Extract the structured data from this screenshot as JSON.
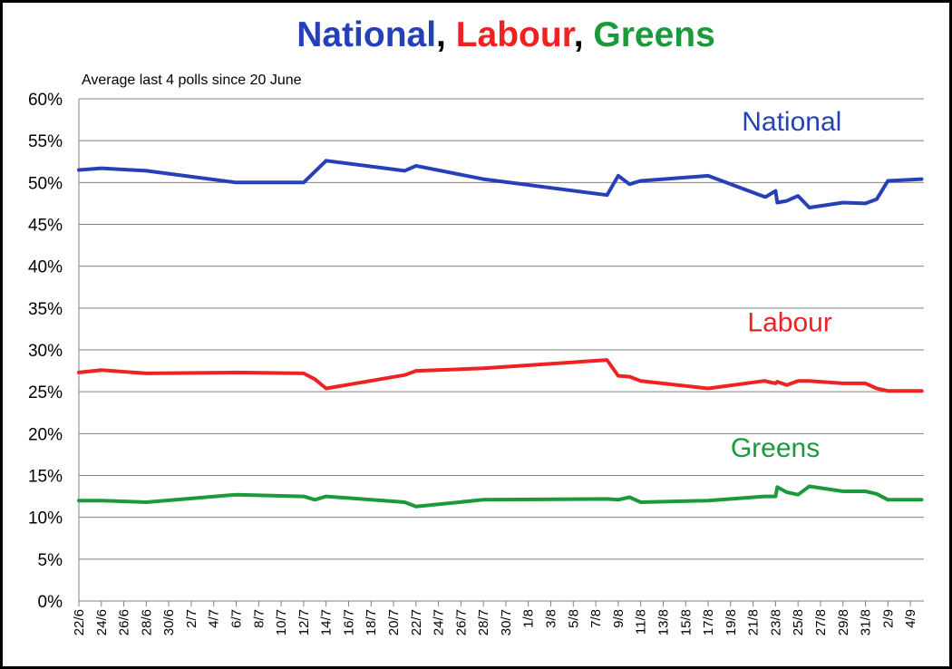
{
  "title": {
    "parts": [
      {
        "text": "National",
        "color": "#2640b8"
      },
      {
        "text": ",  ",
        "color": "#000000"
      },
      {
        "text": "Labour",
        "color": "#ee2222"
      },
      {
        "text": ", ",
        "color": "#000000"
      },
      {
        "text": "Greens",
        "color": "#1a9a3a"
      }
    ]
  },
  "subtitle": "Average last 4 polls since 20 June",
  "chart_data": {
    "type": "line",
    "ylim": [
      0,
      60
    ],
    "yticks": [
      "0%",
      "5%",
      "10%",
      "15%",
      "20%",
      "25%",
      "30%",
      "35%",
      "40%",
      "45%",
      "50%",
      "55%",
      "60%"
    ],
    "x_tick_labels": [
      "22/6",
      "24/6",
      "26/6",
      "28/6",
      "30/6",
      "2/7",
      "4/7",
      "6/7",
      "8/7",
      "10/7",
      "12/7",
      "14/7",
      "16/7",
      "18/7",
      "20/7",
      "22/7",
      "24/7",
      "26/7",
      "28/7",
      "30/7",
      "1/8",
      "3/8",
      "5/8",
      "7/8",
      "9/8",
      "11/8",
      "13/8",
      "15/8",
      "17/8",
      "19/8",
      "21/8",
      "23/8",
      "25/8",
      "27/8",
      "29/8",
      "31/8",
      "2/9",
      "4/9"
    ],
    "x_start_date": "22/6",
    "grid": true,
    "series": [
      {
        "name": "National",
        "color": "#2640b8",
        "points": [
          [
            "22/6",
            51.5
          ],
          [
            "24/6",
            51.7
          ],
          [
            "28/6",
            51.4
          ],
          [
            "6/7",
            50.0
          ],
          [
            "12/7",
            50.0
          ],
          [
            "13/7",
            51.3
          ],
          [
            "14/7",
            52.6
          ],
          [
            "21/7",
            51.4
          ],
          [
            "22/7",
            52.0
          ],
          [
            "28/7",
            50.4
          ],
          [
            "8/8",
            48.5
          ],
          [
            "9/8",
            50.8
          ],
          [
            "10/8",
            49.8
          ],
          [
            "11/8",
            50.2
          ],
          [
            "17/8",
            50.8
          ],
          [
            "22/8",
            48.3
          ],
          [
            "22/8 ",
            48.3
          ],
          [
            "23/8",
            49.0
          ],
          [
            "23/8 ",
            47.6
          ],
          [
            "24/8",
            47.8
          ],
          [
            "25/8",
            48.4
          ],
          [
            "26/8",
            47.0
          ],
          [
            "29/8",
            47.6
          ],
          [
            "31/8",
            47.5
          ],
          [
            "1/9",
            48.0
          ],
          [
            "2/9",
            50.2
          ],
          [
            "5/9",
            50.4
          ]
        ]
      },
      {
        "name": "Labour",
        "color": "#ee2222",
        "points": [
          [
            "22/6",
            27.3
          ],
          [
            "24/6",
            27.6
          ],
          [
            "28/6",
            27.2
          ],
          [
            "6/7",
            27.3
          ],
          [
            "12/7",
            27.2
          ],
          [
            "13/7",
            26.5
          ],
          [
            "14/7",
            25.4
          ],
          [
            "21/7",
            27.0
          ],
          [
            "22/7",
            27.5
          ],
          [
            "28/7",
            27.8
          ],
          [
            "8/8",
            28.8
          ],
          [
            "9/8",
            26.9
          ],
          [
            "10/8",
            26.8
          ],
          [
            "11/8",
            26.3
          ],
          [
            "17/8",
            25.4
          ],
          [
            "22/8",
            26.3
          ],
          [
            "23/8",
            26.0
          ],
          [
            "23/8 ",
            26.2
          ],
          [
            "24/8",
            25.8
          ],
          [
            "25/8",
            26.3
          ],
          [
            "26/8",
            26.3
          ],
          [
            "29/8",
            26.0
          ],
          [
            "31/8",
            26.0
          ],
          [
            "1/9",
            25.4
          ],
          [
            "2/9",
            25.1
          ],
          [
            "5/9",
            25.1
          ]
        ]
      },
      {
        "name": "Greens",
        "color": "#1a9a3a",
        "points": [
          [
            "22/6",
            12.0
          ],
          [
            "24/6",
            12.0
          ],
          [
            "28/6",
            11.8
          ],
          [
            "6/7",
            12.7
          ],
          [
            "12/7",
            12.5
          ],
          [
            "13/7",
            12.1
          ],
          [
            "14/7",
            12.5
          ],
          [
            "21/7",
            11.8
          ],
          [
            "22/7",
            11.3
          ],
          [
            "28/7",
            12.1
          ],
          [
            "8/8",
            12.2
          ],
          [
            "9/8",
            12.1
          ],
          [
            "10/8",
            12.4
          ],
          [
            "11/8",
            11.8
          ],
          [
            "17/8",
            12.0
          ],
          [
            "22/8",
            12.5
          ],
          [
            "23/8",
            12.5
          ],
          [
            "23/8 ",
            13.6
          ],
          [
            "24/8",
            13.0
          ],
          [
            "25/8",
            12.7
          ],
          [
            "26/8",
            13.7
          ],
          [
            "29/8",
            13.1
          ],
          [
            "31/8",
            13.1
          ],
          [
            "1/9",
            12.8
          ],
          [
            "2/9",
            12.1
          ],
          [
            "5/9",
            12.1
          ]
        ]
      }
    ],
    "annotations": [
      {
        "text": "National",
        "color": "#2640b8",
        "series": "National"
      },
      {
        "text": "Labour",
        "color": "#ee2222",
        "series": "Labour"
      },
      {
        "text": "Greens",
        "color": "#1a9a3a",
        "series": "Greens"
      }
    ]
  }
}
